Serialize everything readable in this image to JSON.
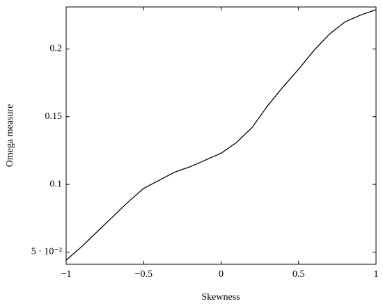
{
  "chart_data": {
    "type": "line",
    "x_label": "Skewness",
    "y_label": "Omega measure",
    "x": [
      -1,
      -0.9,
      -0.8,
      -0.7,
      -0.6,
      -0.5,
      -0.4,
      -0.3,
      -0.2,
      -0.1,
      0,
      0.1,
      0.2,
      0.3,
      0.4,
      0.5,
      0.6,
      0.7,
      0.8,
      0.9,
      1
    ],
    "values": [
      0.044,
      0.054,
      0.065,
      0.076,
      0.087,
      0.097,
      0.103,
      0.109,
      0.113,
      0.118,
      0.123,
      0.131,
      0.142,
      0.158,
      0.172,
      0.185,
      0.199,
      0.211,
      0.22,
      0.225,
      0.229
    ],
    "color": "#000000",
    "xlim": [
      -1,
      1
    ],
    "ylim": [
      0.041,
      0.231
    ],
    "xticks": [
      {
        "value": -1,
        "label": "−1"
      },
      {
        "value": -0.5,
        "label": "−0.5"
      },
      0,
      0.5,
      1
    ],
    "yticks": [
      {
        "value": 0.05,
        "label": "5 · 10⁻²"
      },
      0.1,
      0.15,
      0.2
    ]
  }
}
